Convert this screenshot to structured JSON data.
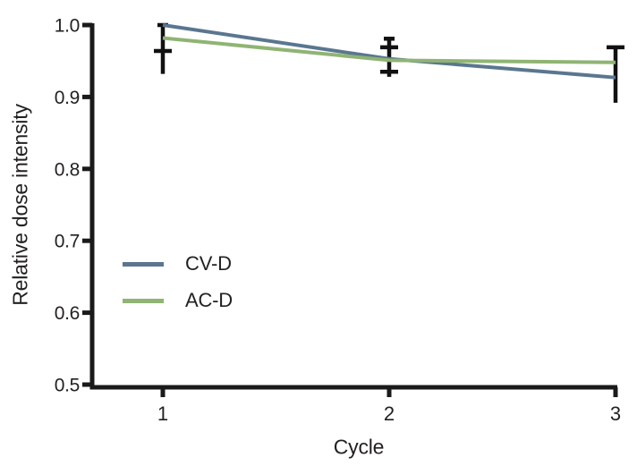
{
  "chart_data": {
    "type": "line",
    "title": "",
    "xlabel": "Cycle",
    "ylabel": "Relative dose intensity",
    "x": [
      1,
      2,
      3
    ],
    "x_tick_labels": [
      "1",
      "2",
      "3"
    ],
    "y_tick_values": [
      1.0,
      0.9,
      0.8,
      0.7,
      0.6,
      0.5
    ],
    "y_tick_labels": [
      "1.0",
      "0.9",
      "0.8",
      "0.7",
      "0.6",
      "0.5"
    ],
    "xlim": [
      1,
      3
    ],
    "ylim": [
      0.5,
      1.0
    ],
    "grid": false,
    "legend_position": "inside-left-middle",
    "axis_color": "#1a1a1a",
    "text_color": "#231f20",
    "error_bar_color": "#111111",
    "series": [
      {
        "name": "CV-D",
        "color": "#5a7690",
        "values": [
          1.0,
          0.953,
          0.927
        ]
      },
      {
        "name": "AC-D",
        "color": "#8fb473",
        "values": [
          0.982,
          0.951,
          0.948
        ]
      }
    ],
    "error_bars": [
      {
        "x": 1,
        "from": 1.0,
        "to": 0.932,
        "caps": [
          {
            "value": 1.0,
            "size": "narrow"
          },
          {
            "value": 0.964,
            "size": "wide"
          }
        ]
      },
      {
        "x": 2,
        "from": 0.981,
        "to": 0.928,
        "caps": [
          {
            "value": 0.981,
            "size": "narrow"
          },
          {
            "value": 0.969,
            "size": "wide"
          },
          {
            "value": 0.935,
            "size": "wide"
          }
        ]
      },
      {
        "x": 3,
        "from": 0.969,
        "to": 0.892,
        "caps": [
          {
            "value": 0.969,
            "size": "wide"
          }
        ]
      }
    ]
  }
}
